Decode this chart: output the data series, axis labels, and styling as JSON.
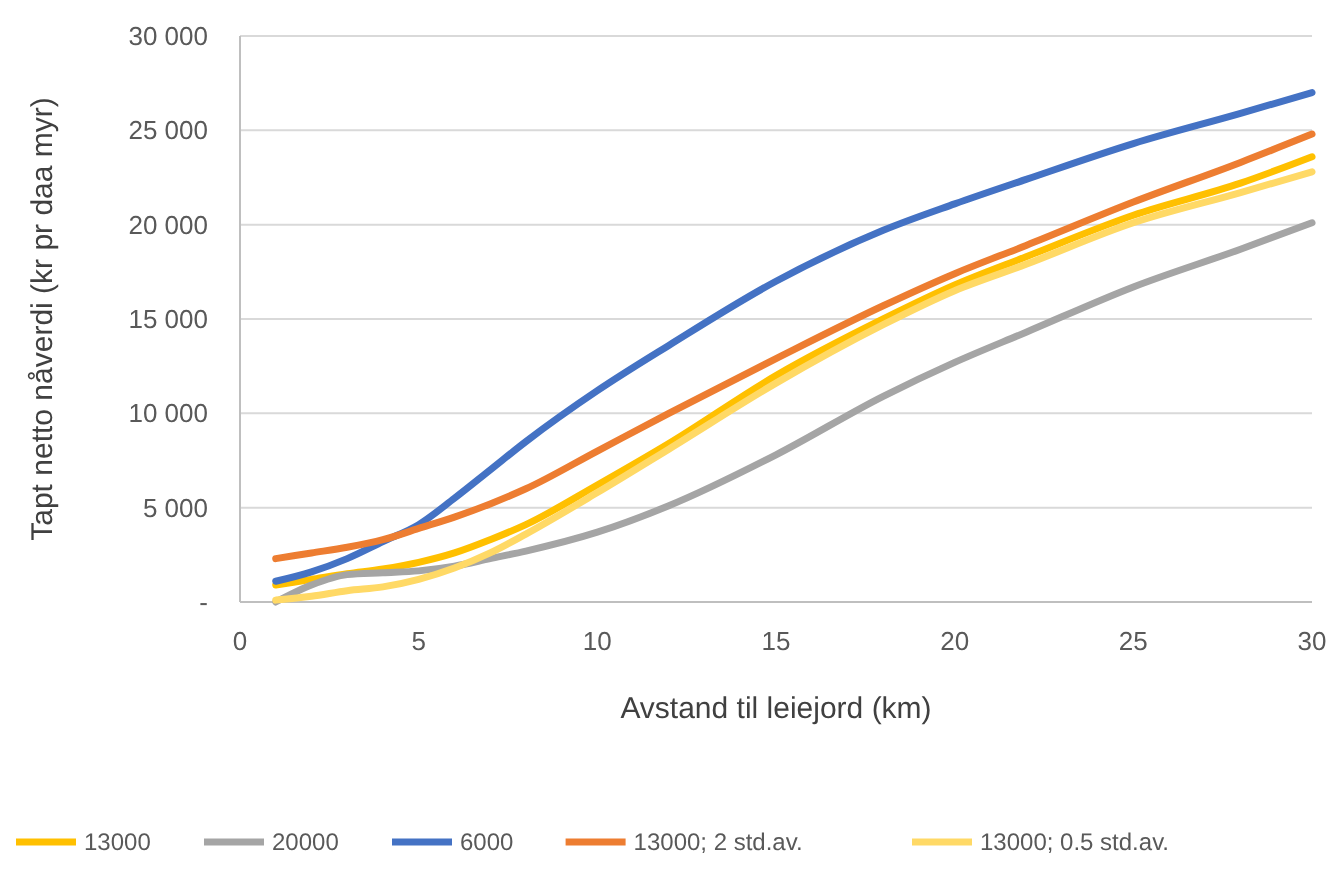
{
  "chart_data": {
    "type": "line",
    "xlabel": "Avstand til leiejord (km)",
    "ylabel": "Tapt netto nåverdi  (kr pr daa myr)",
    "x": [
      1,
      2,
      3,
      4,
      5,
      6,
      7,
      8,
      10,
      12,
      15,
      18,
      20,
      22,
      25,
      28,
      30
    ],
    "series": [
      {
        "name": "13000",
        "color": "#ffc000",
        "values": [
          900,
          1200,
          1500,
          1750,
          2100,
          2600,
          3300,
          4100,
          6200,
          8400,
          12000,
          15000,
          16800,
          18300,
          20500,
          22200,
          23600
        ]
      },
      {
        "name": "20000",
        "color": "#a5a5a5",
        "values": [
          0,
          900,
          1450,
          1550,
          1650,
          1900,
          2300,
          2700,
          3700,
          5100,
          7800,
          10900,
          12700,
          14300,
          16700,
          18700,
          20100
        ]
      },
      {
        "name": "6000",
        "color": "#4472c4",
        "values": [
          1100,
          1600,
          2300,
          3200,
          4100,
          5500,
          7000,
          8500,
          11200,
          13600,
          17000,
          19700,
          21100,
          22400,
          24300,
          25900,
          27000
        ]
      },
      {
        "name": "13000; 2 std.av.",
        "color": "#ed7d31",
        "values": [
          2300,
          2600,
          2900,
          3300,
          3900,
          4500,
          5200,
          6000,
          8000,
          10000,
          12900,
          15700,
          17400,
          18900,
          21200,
          23300,
          24800
        ]
      },
      {
        "name": "13000; 0.5 std.av.",
        "color": "#ffd966",
        "values": [
          100,
          300,
          600,
          800,
          1200,
          1800,
          2600,
          3600,
          5800,
          8100,
          11600,
          14700,
          16500,
          17900,
          20100,
          21700,
          22800
        ]
      }
    ],
    "xlim": [
      0,
      30
    ],
    "xticks": [
      0,
      5,
      10,
      15,
      20,
      25,
      30
    ],
    "ylim": [
      0,
      30000
    ],
    "yticks": [
      {
        "value": 0,
        "label": "-"
      },
      {
        "value": 5000,
        "label": "5 000"
      },
      {
        "value": 10000,
        "label": "10 000"
      },
      {
        "value": 15000,
        "label": "15 000"
      },
      {
        "value": 20000,
        "label": "20 000"
      },
      {
        "value": 25000,
        "label": "25 000"
      },
      {
        "value": 30000,
        "label": "30 000"
      }
    ],
    "grid": "y",
    "legend": "bottom",
    "marker": "none",
    "line_style": "solid"
  }
}
